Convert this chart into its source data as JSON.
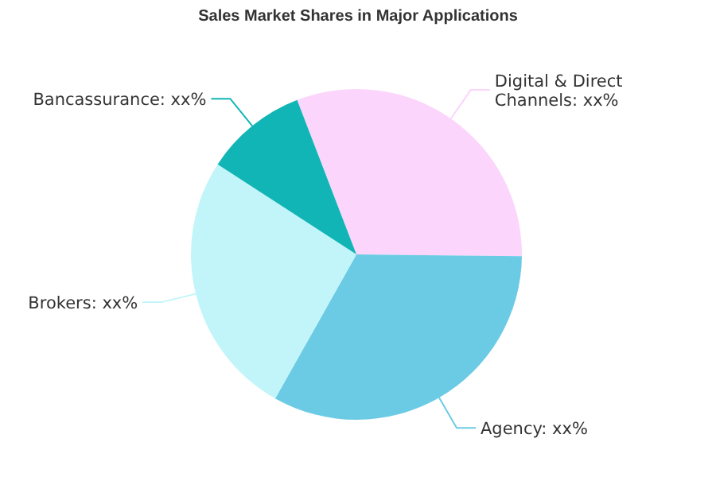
{
  "chart_data": {
    "type": "pie",
    "title": "Sales Market Shares in Major Applications",
    "categories": [
      "Digital & Direct Channels",
      "Agency",
      "Brokers",
      "Bancassurance"
    ],
    "values": [
      31,
      33,
      26,
      10
    ],
    "colors": [
      "#fbd5fb",
      "#6ccbe4",
      "#c2f5f9",
      "#12b5b5"
    ],
    "value_labels": [
      "xx%",
      "xx%",
      "xx%",
      "xx%"
    ]
  }
}
